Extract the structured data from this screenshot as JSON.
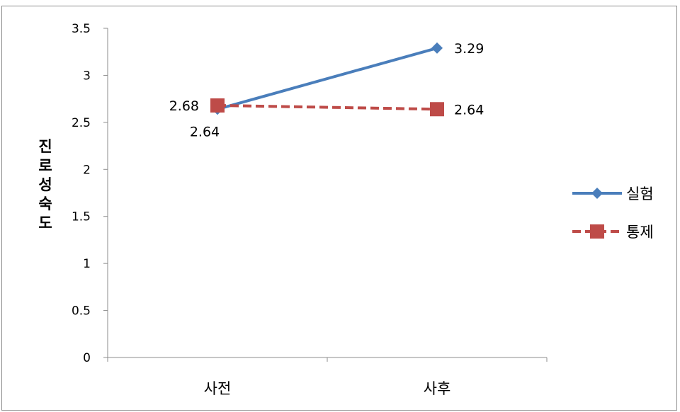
{
  "chart_data": {
    "type": "line",
    "categories": [
      "사전",
      "사후"
    ],
    "series": [
      {
        "name": "실험",
        "values": [
          2.64,
          3.29
        ],
        "color": "#4a7ebb",
        "marker": "diamond",
        "dash": "solid",
        "labels": [
          "2.64",
          "3.29"
        ]
      },
      {
        "name": "통제",
        "values": [
          2.68,
          2.64
        ],
        "color": "#be4b48",
        "marker": "square",
        "dash": "dashed",
        "labels": [
          "2.68",
          "2.64"
        ]
      }
    ],
    "ylabel": "진로성숙도",
    "ylim": [
      0,
      3.5
    ],
    "yticks": [
      "0",
      "0.5",
      "1",
      "1.5",
      "2",
      "2.5",
      "3",
      "3.5"
    ],
    "grid": false,
    "legend": "right"
  }
}
